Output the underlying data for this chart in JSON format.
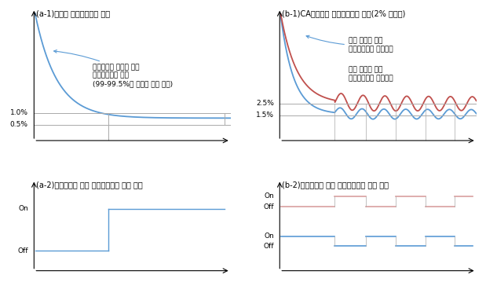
{
  "title_a1": "(a-1)산업용 질소발생기의 운전",
  "title_a2": "(a-2)공급농도에 따른 질소공급밸브 작동 상태",
  "title_b1": "(b-1)CA저장고용 질소발생기의 운전(2% 공급시)",
  "title_b2": "(b-2)공급농도에 따른 질소공급밸브 작동 상태",
  "annotation_a1": "공급농도가 고정된 일반\n질소발생기의 작동\n(99-99.5%의 순도로 고정 공급)",
  "annotation_b1_high": "순도 조절을 위한\n공기배출량이 많을경우",
  "annotation_b1_low": "순도 조절을 위한\n공기배출량이 적을경우",
  "label_on": "On",
  "label_off": "Off",
  "label_1pct": "1.0%",
  "label_05pct": "0.5%",
  "label_25pct": "2.5%",
  "label_15pct": "1.5%",
  "curve_color_blue": "#5b9bd5",
  "curve_color_red": "#c0504d",
  "curve_color_red_light": "#d9a0a0",
  "line_color_gray": "#aaaaaa",
  "bg_color": "#ffffff",
  "text_color": "#000000",
  "font_size_title": 7,
  "font_size_label": 6.5,
  "font_size_annot": 6.5
}
